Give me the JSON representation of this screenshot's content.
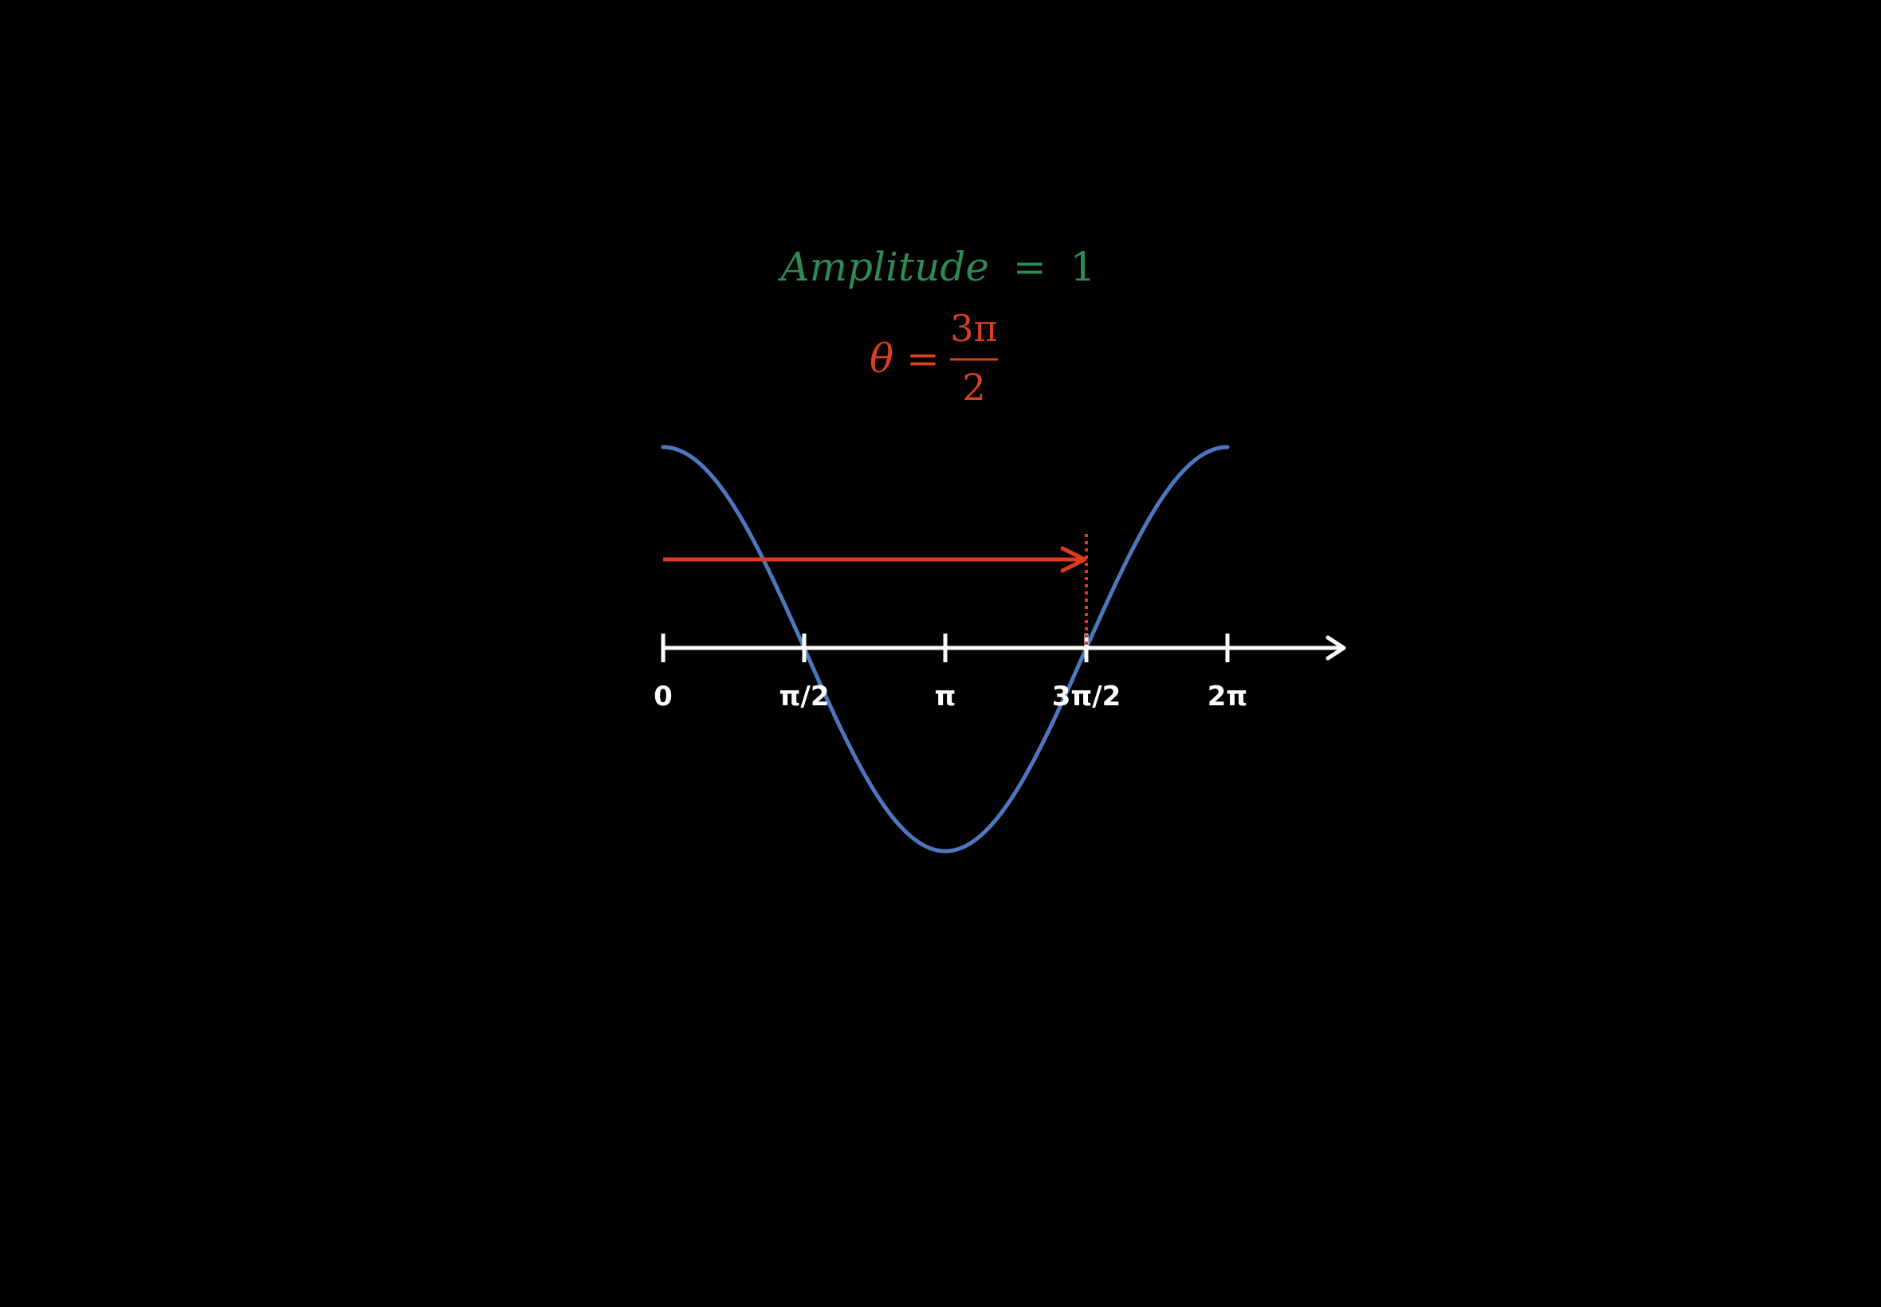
{
  "colors": {
    "background": "#000000",
    "amplitude_text": "#2f8a55",
    "theta_text": "#d8401f",
    "curve": "#4d78bf",
    "axis": "#ffffff",
    "phase_arrow": "#e03a1e"
  },
  "amplitude": {
    "lhs": "Amplitude",
    "eq": "=",
    "rhs": "1"
  },
  "theta": {
    "symbol": "θ",
    "eq": "=",
    "numerator": "3π",
    "denominator": "2"
  },
  "chart_data": {
    "type": "line",
    "curve": {
      "function": "cos",
      "amplitude": 1,
      "x_range": [
        0,
        6.283
      ]
    },
    "x_ticks": [
      {
        "value": 0,
        "label": "0"
      },
      {
        "value": 1.5708,
        "label": "π/2"
      },
      {
        "value": 3.1416,
        "label": "π"
      },
      {
        "value": 4.7124,
        "label": "3π/2"
      },
      {
        "value": 6.2832,
        "label": "2π"
      }
    ],
    "phase_arrow": {
      "from": 0,
      "to": 4.7124
    },
    "grid": false
  }
}
